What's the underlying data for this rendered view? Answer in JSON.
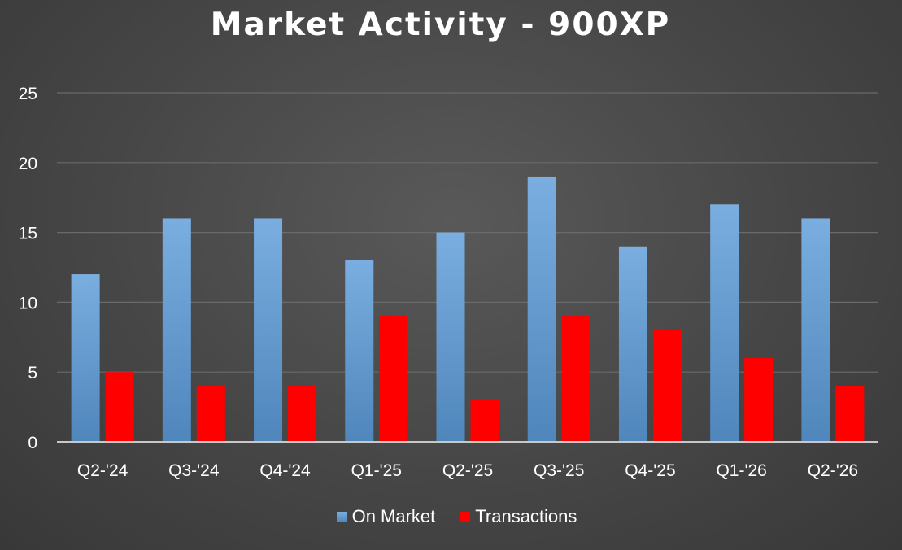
{
  "chart_data": {
    "type": "bar",
    "title": "Market Activity - 900XP",
    "categories": [
      "Q2-'24",
      "Q3-'24",
      "Q4-'24",
      "Q1-'25",
      "Q2-'25",
      "Q3-'25",
      "Q4-'25",
      "Q1-'26",
      "Q2-'26"
    ],
    "series": [
      {
        "name": "On Market",
        "values": [
          12,
          16,
          16,
          13,
          15,
          19,
          14,
          17,
          16
        ],
        "color": "#5b9bd5"
      },
      {
        "name": "Transactions",
        "values": [
          5,
          4,
          4,
          9,
          3,
          9,
          8,
          6,
          4
        ],
        "color": "#ff0000"
      }
    ],
    "yticks": [
      0,
      5,
      10,
      15,
      20,
      25
    ],
    "ylim": [
      0,
      25
    ],
    "grid": true,
    "legend_position": "bottom"
  }
}
